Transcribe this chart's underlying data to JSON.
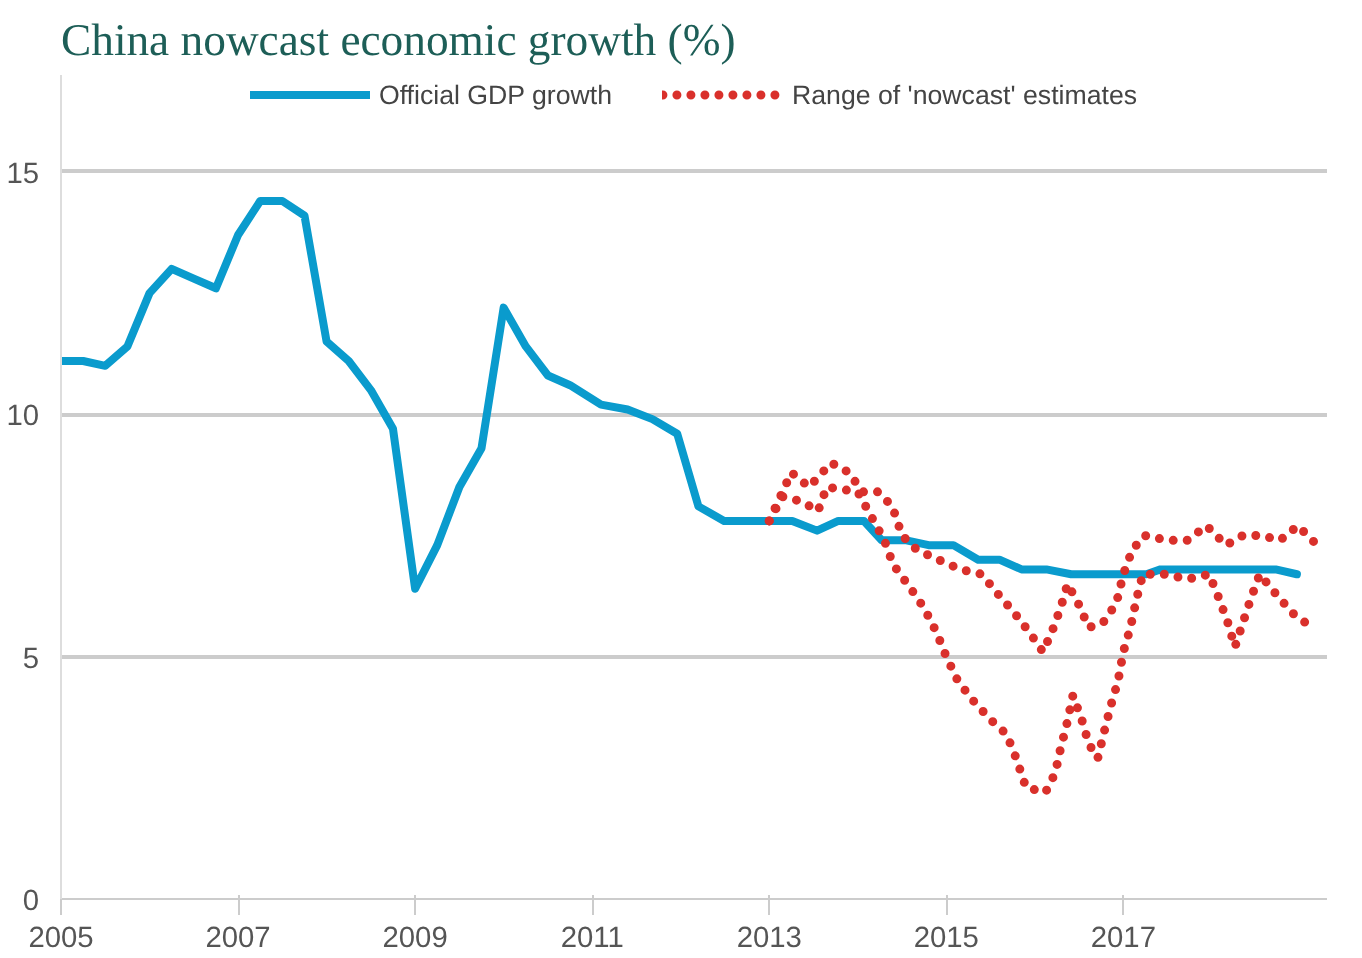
{
  "chart_data": {
    "type": "line",
    "title": "China nowcast economic growth (%)",
    "xlim": [
      2005,
      2019.3
    ],
    "xticks": [
      2005,
      2007,
      2009,
      2011,
      2013,
      2015,
      2017
    ],
    "ylim": [
      0,
      17
    ],
    "yticks": [
      0,
      5,
      10,
      15
    ],
    "grid": "y",
    "legend": "top",
    "marker": "none",
    "series": [
      {
        "name": "Official GDP growth",
        "color": "#0a9bcd",
        "line_style": "solid",
        "x": [
          2005,
          2005.25,
          2005.5,
          2005.75,
          2006,
          2006.25,
          2006.5,
          2006.75,
          2007,
          2007.25,
          2007.5,
          2007.75,
          2008,
          2008.25,
          2008.5,
          2008.75,
          2009,
          2009.25,
          2009.5,
          2009.75,
          2010,
          2010.25,
          2010.5,
          2010.75,
          2011.1,
          2011.4,
          2011.68,
          2011.96,
          2012.2,
          2012.49,
          2013.26,
          2013.54,
          2013.78,
          2014.07,
          2014.27,
          2014.55,
          2014.8,
          2015.08,
          2015.36,
          2015.6,
          2015.85,
          2016.13,
          2016.41,
          2017.26,
          2017.42,
          2018.72,
          2018.96
        ],
        "values": [
          11.1,
          11.1,
          11.0,
          11.4,
          12.5,
          13.0,
          12.8,
          12.6,
          13.7,
          14.4,
          14.4,
          14.1,
          11.5,
          11.1,
          10.5,
          9.7,
          6.4,
          7.3,
          8.5,
          9.3,
          12.2,
          11.4,
          10.8,
          10.6,
          10.2,
          10.1,
          9.9,
          9.6,
          8.1,
          7.8,
          7.8,
          7.6,
          7.8,
          7.8,
          7.4,
          7.4,
          7.3,
          7.3,
          7.0,
          7.0,
          6.8,
          6.8,
          6.7,
          6.7,
          6.8,
          6.8,
          6.7
        ]
      },
      {
        "name": "Range of 'nowcast' estimates",
        "color": "#d9302b",
        "line_style": "dotted",
        "x": [
          2013.0,
          2013.25,
          2013.45,
          2013.7,
          2013.9,
          2014.05,
          2014.23,
          2014.39,
          2014.5,
          2014.67,
          2014.91,
          2015.16,
          2015.4,
          2015.58,
          2015.77,
          2015.94,
          2016.09,
          2016.19,
          2016.29,
          2016.37,
          2016.49,
          2016.61,
          2016.77,
          2016.92,
          2017.0,
          2017.1,
          2017.24,
          2017.5,
          2017.72,
          2017.94,
          2018.16,
          2018.35,
          2018.56,
          2018.77,
          2018.97,
          2019.19
        ],
        "values": [
          7.8,
          8.8,
          8.5,
          9.0,
          8.8,
          8.4,
          8.4,
          8.1,
          7.5,
          7.2,
          7.0,
          6.8,
          6.7,
          6.3,
          5.9,
          5.5,
          5.1,
          5.5,
          6.0,
          6.5,
          6.1,
          5.6,
          5.7,
          6.1,
          6.7,
          7.2,
          7.5,
          7.4,
          7.4,
          7.7,
          7.3,
          7.5,
          7.5,
          7.4,
          7.7,
          7.3
        ]
      },
      {
        "color": "#d9302b",
        "line_style": "dotted",
        "x": [
          2013.0,
          2013.15,
          2013.37,
          2013.55,
          2013.65,
          2014.0,
          2014.3,
          2014.4,
          2014.6,
          2014.75,
          2014.89,
          2015.0,
          2015.13,
          2015.3,
          2015.5,
          2015.68,
          2015.79,
          2015.9,
          2016.12,
          2016.23,
          2016.29,
          2016.36,
          2016.43,
          2016.53,
          2016.61,
          2016.71,
          2016.79,
          2016.86,
          2016.94,
          2017.0,
          2017.08,
          2017.15,
          2017.22,
          2017.47,
          2017.73,
          2017.97,
          2018.08,
          2018.18,
          2018.26,
          2018.35,
          2018.44,
          2018.54,
          2018.72,
          2018.91,
          2019.13
        ],
        "values": [
          7.8,
          8.3,
          8.2,
          8.0,
          8.5,
          8.4,
          7.4,
          6.9,
          6.4,
          6.0,
          5.5,
          5.0,
          4.5,
          4.1,
          3.7,
          3.4,
          2.9,
          2.3,
          2.2,
          2.6,
          3.1,
          3.6,
          4.2,
          3.7,
          3.2,
          2.9,
          3.5,
          4.0,
          4.5,
          5.1,
          5.6,
          6.2,
          6.7,
          6.7,
          6.6,
          6.7,
          6.2,
          5.7,
          5.2,
          5.7,
          6.2,
          6.7,
          6.3,
          5.9,
          5.6
        ]
      }
    ]
  }
}
